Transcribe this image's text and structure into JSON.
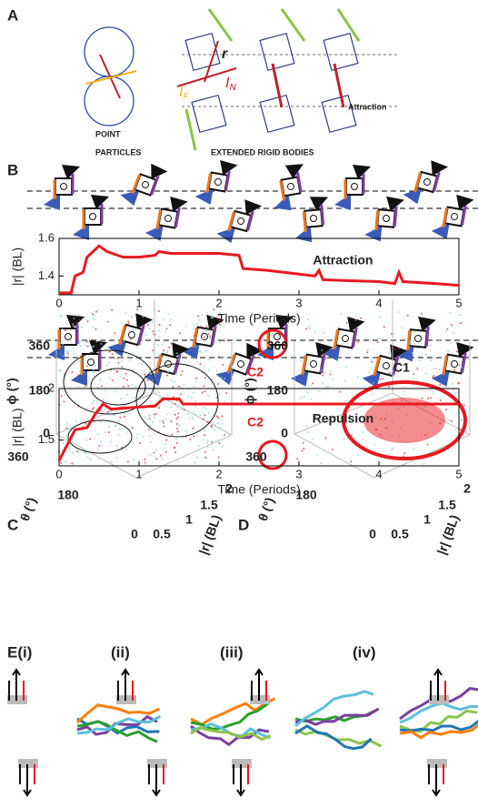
{
  "panel_labels": [
    "A",
    "B",
    "C",
    "D"
  ],
  "panel_a": {
    "vector_labels": [
      {
        "text": "r"
      },
      {
        "text": "I",
        "sub": "F"
      },
      {
        "text": "I",
        "sub": "N"
      }
    ],
    "point_particles": [
      "POINT",
      "PARTICLES"
    ],
    "rigid_bodies": "EXTENDED RIGID BODIES",
    "annotation": "Attraction"
  },
  "chart_data": [
    {
      "type": "line",
      "annotation": "Attraction",
      "xlabel": "Time (Periods)",
      "ylabel": "|r| (BL)",
      "color": "#e8191f",
      "x": [
        0,
        0.15,
        0.2,
        0.3,
        0.35,
        0.5,
        0.6,
        0.8,
        1.0,
        1.2,
        1.25,
        1.4,
        2.0,
        2.25,
        2.3,
        2.6,
        3.0,
        3.2,
        3.25,
        3.3,
        4.0,
        4.2,
        4.25,
        4.3,
        4.7,
        5.0
      ],
      "values": [
        1.31,
        1.31,
        1.4,
        1.42,
        1.5,
        1.56,
        1.53,
        1.5,
        1.5,
        1.51,
        1.53,
        1.52,
        1.52,
        1.51,
        1.44,
        1.43,
        1.41,
        1.4,
        1.43,
        1.38,
        1.37,
        1.36,
        1.42,
        1.37,
        1.36,
        1.35
      ],
      "xlim": [
        0,
        5
      ],
      "xticks": [
        0,
        1,
        2,
        3,
        4,
        5
      ],
      "ylim": [
        1.3,
        1.6
      ],
      "yticks": [
        1.4,
        1.6
      ]
    },
    {
      "type": "line",
      "annotation": "Repulsion",
      "xlabel": "Time (Periods)",
      "ylabel": "|r| (BL)",
      "color": "#e8191f",
      "x": [
        0,
        0.1,
        0.2,
        0.35,
        0.45,
        0.55,
        0.65,
        1.0,
        1.2,
        1.3,
        1.5,
        1.55,
        5.0
      ],
      "values": [
        1.3,
        1.45,
        1.6,
        1.62,
        1.75,
        1.85,
        1.8,
        1.82,
        1.83,
        1.9,
        1.9,
        1.85,
        1.85
      ],
      "xlim": [
        0,
        5
      ],
      "xticks": [
        0,
        1,
        2,
        3,
        4,
        5
      ],
      "ylim": [
        1.25,
        2.0
      ],
      "yticks": [
        1.5,
        2
      ]
    }
  ],
  "panel_3d": {
    "phi_label": "ϕ (°)",
    "theta_label": "θ (°)",
    "r_label": "|r| (BL)",
    "phi_ticks": [
      "360",
      "180",
      "0"
    ],
    "theta_ticks": [
      "360",
      "180"
    ],
    "r_ticks": [
      "0",
      "0.5",
      "1",
      "1.5",
      "2"
    ]
  },
  "panel_d_clusters": [
    "C1",
    "C2",
    "C2"
  ],
  "panel_e": [
    "E(i)",
    "(ii)",
    "(iii)",
    "(iv)"
  ]
}
